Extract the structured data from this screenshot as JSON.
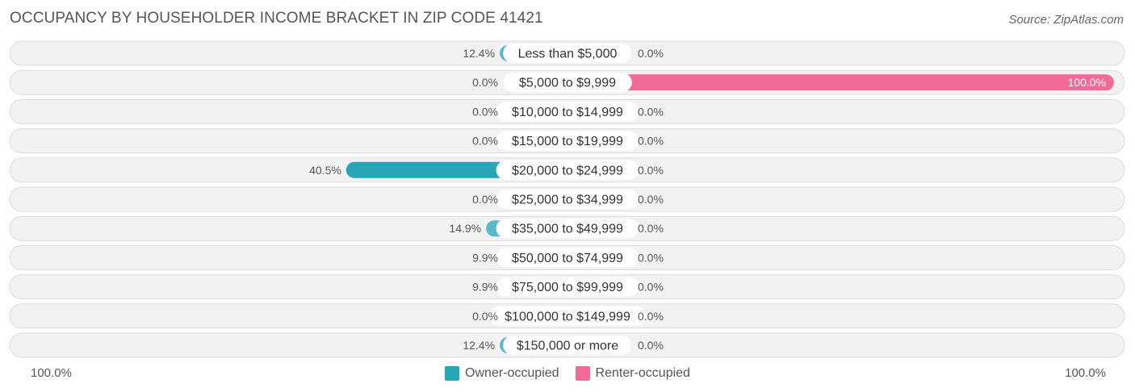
{
  "header": {
    "title": "OCCUPANCY BY HOUSEHOLDER INCOME BRACKET IN ZIP CODE 41421",
    "source": "Source: ZipAtlas.com"
  },
  "colors": {
    "owner_bar": "#5ab8c8",
    "owner_bar_strong": "#26a6b6",
    "renter_bar": "#f7a8c2",
    "renter_bar_strong": "#f06b97",
    "row_background": "#f2f2f2",
    "row_border": "#dcdcdc"
  },
  "chart_data": {
    "type": "bar",
    "orientation": "horizontal-diverging",
    "categories": [
      "Less than $5,000",
      "$5,000 to $9,999",
      "$10,000 to $14,999",
      "$15,000 to $19,999",
      "$20,000 to $24,999",
      "$25,000 to $34,999",
      "$35,000 to $49,999",
      "$50,000 to $74,999",
      "$75,000 to $99,999",
      "$100,000 to $149,999",
      "$150,000 or more"
    ],
    "series": [
      {
        "name": "Owner-occupied",
        "values": [
          12.4,
          0.0,
          0.0,
          0.0,
          40.5,
          0.0,
          14.9,
          9.9,
          9.9,
          0.0,
          12.4
        ],
        "labels": [
          "12.4%",
          "0.0%",
          "0.0%",
          "0.0%",
          "40.5%",
          "0.0%",
          "14.9%",
          "9.9%",
          "9.9%",
          "0.0%",
          "12.4%"
        ]
      },
      {
        "name": "Renter-occupied",
        "values": [
          0.0,
          100.0,
          0.0,
          0.0,
          0.0,
          0.0,
          0.0,
          0.0,
          0.0,
          0.0,
          0.0
        ],
        "labels": [
          "0.0%",
          "100.0%",
          "0.0%",
          "0.0%",
          "0.0%",
          "0.0%",
          "0.0%",
          "0.0%",
          "0.0%",
          "0.0%",
          "0.0%"
        ]
      }
    ],
    "xlim": [
      -100,
      100
    ],
    "axis_left_label": "100.0%",
    "axis_right_label": "100.0%",
    "legend_position": "bottom-center"
  }
}
